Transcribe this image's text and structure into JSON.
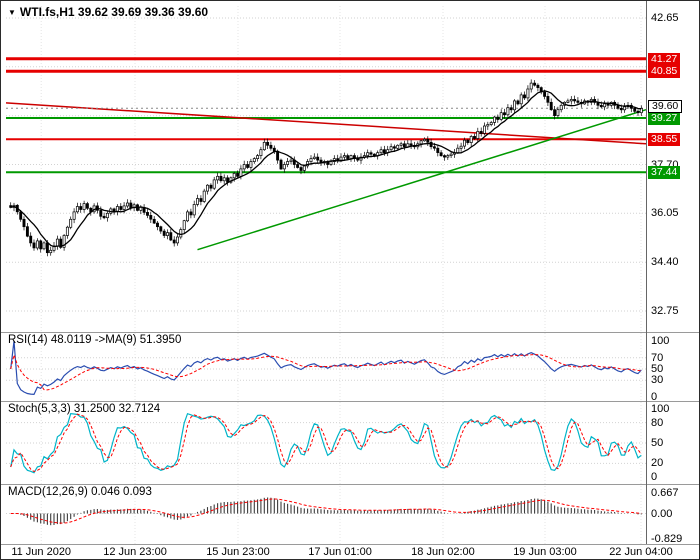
{
  "header": {
    "dropdown_icon": "▼",
    "title": "WTI.fs,H1  39.62 39.69 39.36 39.60"
  },
  "time_axis": {
    "labels": [
      {
        "pos": 0.055,
        "text": "11 Jun 2020"
      },
      {
        "pos": 0.2016,
        "text": "12 Jun 23:00"
      },
      {
        "pos": 0.3625,
        "text": "15 Jun 23:00"
      },
      {
        "pos": 0.5219,
        "text": "17 Jun 01:00"
      },
      {
        "pos": 0.6828,
        "text": "18 Jun 02:00"
      },
      {
        "pos": 0.8422,
        "text": "19 Jun 03:00"
      },
      {
        "pos": 0.9922,
        "text": "22 Jun 04:00"
      }
    ]
  },
  "chart_data": {
    "type": "candlestick",
    "symbol": "WTI.fs",
    "timeframe": "H1",
    "current_bar_ohlc": [
      39.62,
      39.69,
      39.36,
      39.6
    ],
    "main": {
      "price_range": [
        32.75,
        42.65
      ],
      "grid_prices": [
        42.65,
        41.0,
        39.35,
        37.7,
        36.05,
        34.4,
        32.75
      ],
      "axis_ticks": [
        {
          "price": 42.65,
          "label": "42.65"
        },
        {
          "price": 37.7,
          "label": "37.70"
        },
        {
          "price": 36.05,
          "label": "36.05"
        },
        {
          "price": 34.4,
          "label": "34.40"
        },
        {
          "price": 32.75,
          "label": "32.75"
        }
      ],
      "current_price": {
        "price": 39.6,
        "label": "39.60"
      },
      "levels": [
        {
          "price": 41.27,
          "label": "41.27",
          "color": "#e60000",
          "width": 3
        },
        {
          "price": 40.85,
          "label": "40.85",
          "color": "#e60000",
          "width": 3
        },
        {
          "price": 39.27,
          "label": "39.27",
          "color": "#009900",
          "width": 2
        },
        {
          "price": 38.55,
          "label": "38.55",
          "color": "#e60000",
          "width": 2
        },
        {
          "price": 37.44,
          "label": "37.44",
          "color": "#009900",
          "width": 2
        }
      ],
      "trendlines": [
        {
          "from_index": 0,
          "from_price": 39.78,
          "to_index": 190,
          "to_price": 38.4,
          "color": "#cc0000",
          "width": 1.5
        },
        {
          "from_index": 56,
          "from_price": 34.82,
          "to_index": 190,
          "to_price": 39.55,
          "color": "#009900",
          "width": 1.5
        }
      ],
      "ma_period": 8,
      "candles": {
        "closes": [
          36.25,
          36.32,
          36.1,
          35.85,
          35.6,
          35.28,
          35.05,
          34.88,
          35.12,
          34.85,
          35.05,
          34.72,
          34.8,
          34.95,
          35.18,
          34.9,
          35.3,
          35.58,
          35.85,
          36.1,
          36.28,
          36.18,
          36.38,
          36.22,
          36.1,
          36.3,
          36.15,
          35.95,
          35.9,
          36.05,
          36.2,
          36.1,
          36.28,
          36.18,
          36.3,
          36.4,
          36.24,
          36.34,
          36.15,
          36.25,
          36.08,
          35.98,
          35.85,
          35.72,
          35.6,
          35.45,
          35.3,
          35.4,
          35.15,
          35.05,
          35.25,
          35.5,
          35.8,
          36.1,
          36.0,
          36.35,
          36.55,
          36.45,
          36.8,
          37.0,
          36.9,
          37.18,
          37.3,
          37.15,
          37.25,
          37.1,
          37.25,
          37.4,
          37.3,
          37.55,
          37.7,
          37.6,
          37.8,
          37.9,
          38.0,
          38.2,
          38.45,
          38.35,
          38.25,
          38.15,
          37.85,
          37.55,
          37.7,
          37.8,
          37.85,
          37.7,
          37.6,
          37.5,
          37.65,
          37.8,
          37.9,
          37.95,
          37.85,
          37.75,
          37.8,
          37.7,
          37.8,
          37.9,
          37.85,
          37.95,
          38.0,
          37.9,
          38.0,
          37.9,
          37.85,
          37.95,
          38.0,
          38.1,
          38.05,
          38.0,
          38.1,
          38.2,
          38.1,
          38.2,
          38.3,
          38.25,
          38.35,
          38.4,
          38.3,
          38.4,
          38.35,
          38.3,
          38.4,
          38.5,
          38.55,
          38.45,
          38.3,
          38.25,
          38.1,
          38.0,
          37.95,
          38.0,
          38.05,
          38.1,
          38.25,
          38.32,
          38.52,
          38.44,
          38.65,
          38.58,
          38.82,
          38.75,
          39.0,
          39.05,
          39.12,
          39.3,
          39.22,
          39.45,
          39.38,
          39.62,
          39.55,
          39.85,
          39.75,
          40.05,
          39.95,
          40.25,
          40.45,
          40.38,
          40.3,
          40.15,
          40.0,
          39.8,
          39.55,
          39.35,
          39.55,
          39.7,
          39.8,
          39.85,
          39.9,
          39.85,
          39.8,
          39.75,
          39.85,
          39.8,
          39.9,
          39.8,
          39.7,
          39.65,
          39.75,
          39.7,
          39.8,
          39.7,
          39.6,
          39.55,
          39.65,
          39.7,
          39.6,
          39.5,
          39.45,
          39.6
        ]
      }
    },
    "rsi": {
      "label": "RSI(14) 48.0119  ->MA(9) 51.3950",
      "period": 14,
      "ma_period": 9,
      "range": [
        0,
        100
      ],
      "ticks": [
        100,
        70,
        50,
        30,
        0
      ],
      "levels": [
        70,
        50,
        30
      ],
      "colors": {
        "main": "#2a4db0",
        "signal": "#ff0000"
      }
    },
    "stoch": {
      "label": "Stoch(5,3,3) 31.2500 32.7124",
      "k_period": 5,
      "slowing": 3,
      "d_period": 3,
      "range": [
        0,
        100
      ],
      "ticks": [
        100,
        80,
        50,
        20,
        0
      ],
      "levels": [
        80,
        50,
        20
      ],
      "colors": {
        "main": "#00b4c8",
        "signal": "#ff0000"
      }
    },
    "macd": {
      "label": "MACD(12,26,9) 0.046 0.093",
      "fast": 12,
      "slow": 26,
      "signal_period": 9,
      "range": [
        -0.829,
        0.667
      ],
      "ticks": [
        {
          "v": 0.667,
          "label": "0.667"
        },
        {
          "v": 0.0,
          "label": "0.00"
        },
        {
          "v": -0.829,
          "label": "-0.829"
        }
      ],
      "colors": {
        "hist": "#3c3c3c",
        "signal": "#ff0000"
      }
    },
    "style": {
      "grid_color": "#d2d2d2",
      "separator_color": "#9a9a9a",
      "axis_line_color": "#666666",
      "candle_color": "#000000",
      "ma_color": "#000000",
      "current_price_line_color": "#888888"
    }
  }
}
